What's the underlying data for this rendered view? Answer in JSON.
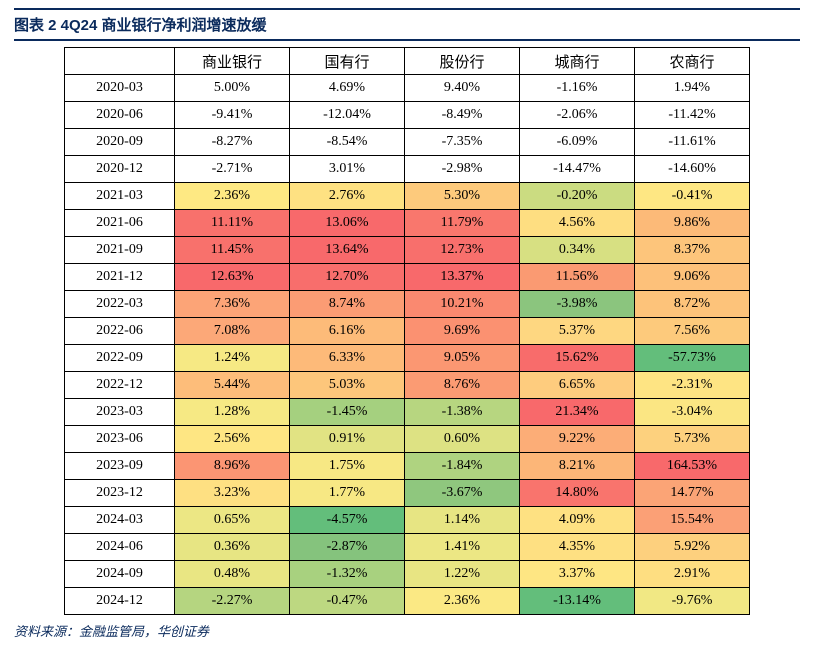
{
  "title": "图表 2 4Q24 商业银行净利润增速放缓",
  "source": "资料来源：金融监管局，华创证券",
  "table": {
    "type": "heatmap-table",
    "columns": [
      "商业银行",
      "国有行",
      "股份行",
      "城商行",
      "农商行"
    ],
    "rows": [
      {
        "date": "2020-03",
        "cells": [
          {
            "v": "5.00%",
            "bg": "#ffffff"
          },
          {
            "v": "4.69%",
            "bg": "#ffffff"
          },
          {
            "v": "9.40%",
            "bg": "#ffffff"
          },
          {
            "v": "-1.16%",
            "bg": "#ffffff"
          },
          {
            "v": "1.94%",
            "bg": "#ffffff"
          }
        ]
      },
      {
        "date": "2020-06",
        "cells": [
          {
            "v": "-9.41%",
            "bg": "#ffffff"
          },
          {
            "v": "-12.04%",
            "bg": "#ffffff"
          },
          {
            "v": "-8.49%",
            "bg": "#ffffff"
          },
          {
            "v": "-2.06%",
            "bg": "#ffffff"
          },
          {
            "v": "-11.42%",
            "bg": "#ffffff"
          }
        ]
      },
      {
        "date": "2020-09",
        "cells": [
          {
            "v": "-8.27%",
            "bg": "#ffffff"
          },
          {
            "v": "-8.54%",
            "bg": "#ffffff"
          },
          {
            "v": "-7.35%",
            "bg": "#ffffff"
          },
          {
            "v": "-6.09%",
            "bg": "#ffffff"
          },
          {
            "v": "-11.61%",
            "bg": "#ffffff"
          }
        ]
      },
      {
        "date": "2020-12",
        "cells": [
          {
            "v": "-2.71%",
            "bg": "#ffffff"
          },
          {
            "v": "3.01%",
            "bg": "#ffffff"
          },
          {
            "v": "-2.98%",
            "bg": "#ffffff"
          },
          {
            "v": "-14.47%",
            "bg": "#ffffff"
          },
          {
            "v": "-14.60%",
            "bg": "#ffffff"
          }
        ]
      },
      {
        "date": "2021-03",
        "cells": [
          {
            "v": "2.36%",
            "bg": "#fee983"
          },
          {
            "v": "2.76%",
            "bg": "#fee182"
          },
          {
            "v": "5.30%",
            "bg": "#fdca7c"
          },
          {
            "v": "-0.20%",
            "bg": "#cbdc81"
          },
          {
            "v": "-0.41%",
            "bg": "#fee783"
          }
        ]
      },
      {
        "date": "2021-06",
        "cells": [
          {
            "v": "11.11%",
            "bg": "#f8716c"
          },
          {
            "v": "13.06%",
            "bg": "#f8696b"
          },
          {
            "v": "11.79%",
            "bg": "#f9776d"
          },
          {
            "v": "4.56%",
            "bg": "#fede81"
          },
          {
            "v": "9.86%",
            "bg": "#fcba78"
          }
        ]
      },
      {
        "date": "2021-09",
        "cells": [
          {
            "v": "11.45%",
            "bg": "#f8716c"
          },
          {
            "v": "13.64%",
            "bg": "#f8696b"
          },
          {
            "v": "12.73%",
            "bg": "#f86f6c"
          },
          {
            "v": "0.34%",
            "bg": "#d7e082"
          },
          {
            "v": "8.37%",
            "bg": "#fdc57b"
          }
        ]
      },
      {
        "date": "2021-12",
        "cells": [
          {
            "v": "12.63%",
            "bg": "#f8696b"
          },
          {
            "v": "12.70%",
            "bg": "#f86e6c"
          },
          {
            "v": "13.37%",
            "bg": "#f8696b"
          },
          {
            "v": "11.56%",
            "bg": "#fa9a72"
          },
          {
            "v": "9.06%",
            "bg": "#fdc17a"
          }
        ]
      },
      {
        "date": "2022-03",
        "cells": [
          {
            "v": "7.36%",
            "bg": "#fca477"
          },
          {
            "v": "8.74%",
            "bg": "#fb9c74"
          },
          {
            "v": "10.21%",
            "bg": "#fa8970"
          },
          {
            "v": "-3.98%",
            "bg": "#8bc57e"
          },
          {
            "v": "8.72%",
            "bg": "#fdc37a"
          }
        ]
      },
      {
        "date": "2022-06",
        "cells": [
          {
            "v": "7.08%",
            "bg": "#fca878"
          },
          {
            "v": "6.16%",
            "bg": "#fdbb79"
          },
          {
            "v": "9.69%",
            "bg": "#fb9171"
          },
          {
            "v": "5.37%",
            "bg": "#fed781"
          },
          {
            "v": "7.56%",
            "bg": "#fdca7c"
          }
        ]
      },
      {
        "date": "2022-09",
        "cells": [
          {
            "v": "1.24%",
            "bg": "#f6e984"
          },
          {
            "v": "6.33%",
            "bg": "#fdba79"
          },
          {
            "v": "9.05%",
            "bg": "#fb9772"
          },
          {
            "v": "15.62%",
            "bg": "#f86c6b"
          },
          {
            "v": "-57.73%",
            "bg": "#63be7b"
          }
        ]
      },
      {
        "date": "2022-12",
        "cells": [
          {
            "v": "5.44%",
            "bg": "#fdbd7a"
          },
          {
            "v": "5.03%",
            "bg": "#fdc67b"
          },
          {
            "v": "8.76%",
            "bg": "#fb9b73"
          },
          {
            "v": "6.65%",
            "bg": "#fecc7e"
          },
          {
            "v": "-2.31%",
            "bg": "#fee483"
          }
        ]
      },
      {
        "date": "2023-03",
        "cells": [
          {
            "v": "1.28%",
            "bg": "#f6e984"
          },
          {
            "v": "-1.45%",
            "bg": "#a5d07f"
          },
          {
            "v": "-1.38%",
            "bg": "#b7d680"
          },
          {
            "v": "21.34%",
            "bg": "#f8696b"
          },
          {
            "v": "-3.04%",
            "bg": "#fbe683"
          }
        ]
      },
      {
        "date": "2023-06",
        "cells": [
          {
            "v": "2.56%",
            "bg": "#fee683"
          },
          {
            "v": "0.91%",
            "bg": "#e1e383"
          },
          {
            "v": "0.60%",
            "bg": "#dde283"
          },
          {
            "v": "9.22%",
            "bg": "#fcad77"
          },
          {
            "v": "5.73%",
            "bg": "#fdd17e"
          }
        ]
      },
      {
        "date": "2023-09",
        "cells": [
          {
            "v": "8.96%",
            "bg": "#fb9573"
          },
          {
            "v": "1.75%",
            "bg": "#f7e884"
          },
          {
            "v": "-1.84%",
            "bg": "#afd380"
          },
          {
            "v": "8.21%",
            "bg": "#fcb678"
          },
          {
            "v": "164.53%",
            "bg": "#f8696b"
          }
        ]
      },
      {
        "date": "2023-12",
        "cells": [
          {
            "v": "3.23%",
            "bg": "#fee082"
          },
          {
            "v": "1.77%",
            "bg": "#f7e884"
          },
          {
            "v": "-3.67%",
            "bg": "#8fc77e"
          },
          {
            "v": "14.80%",
            "bg": "#f9746d"
          },
          {
            "v": "14.77%",
            "bg": "#fba476"
          }
        ]
      },
      {
        "date": "2024-03",
        "cells": [
          {
            "v": "0.65%",
            "bg": "#ece784"
          },
          {
            "v": "-4.57%",
            "bg": "#63be7b"
          },
          {
            "v": "1.14%",
            "bg": "#e7e583"
          },
          {
            "v": "4.09%",
            "bg": "#fee182"
          },
          {
            "v": "15.54%",
            "bg": "#fba076"
          }
        ]
      },
      {
        "date": "2024-06",
        "cells": [
          {
            "v": "0.36%",
            "bg": "#e7e583"
          },
          {
            "v": "-2.87%",
            "bg": "#85c37d"
          },
          {
            "v": "1.41%",
            "bg": "#ece784"
          },
          {
            "v": "4.35%",
            "bg": "#fee082"
          },
          {
            "v": "5.92%",
            "bg": "#fdd07e"
          }
        ]
      },
      {
        "date": "2024-09",
        "cells": [
          {
            "v": "0.48%",
            "bg": "#e9e683"
          },
          {
            "v": "-1.32%",
            "bg": "#a8d17f"
          },
          {
            "v": "1.22%",
            "bg": "#e8e583"
          },
          {
            "v": "3.37%",
            "bg": "#fee683"
          },
          {
            "v": "2.91%",
            "bg": "#fede81"
          }
        ]
      },
      {
        "date": "2024-12",
        "cells": [
          {
            "v": "-2.27%",
            "bg": "#b5d580"
          },
          {
            "v": "-0.47%",
            "bg": "#bdd881"
          },
          {
            "v": "2.36%",
            "bg": "#fbe984"
          },
          {
            "v": "-13.14%",
            "bg": "#63be7b"
          },
          {
            "v": "-9.76%",
            "bg": "#f1e884"
          }
        ]
      }
    ],
    "border_color": "#000000",
    "title_color": "#0a2a5c",
    "font_size_cell": 14,
    "font_size_header": 15
  }
}
